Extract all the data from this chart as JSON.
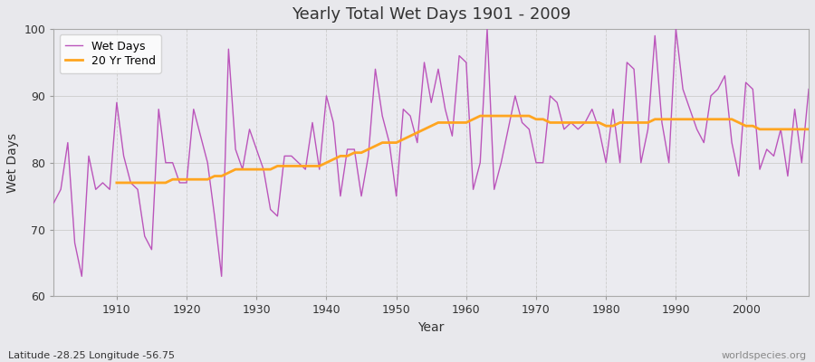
{
  "title": "Yearly Total Wet Days 1901 - 2009",
  "xlabel": "Year",
  "ylabel": "Wet Days",
  "subtitle": "Latitude -28.25 Longitude -56.75",
  "watermark": "worldspecies.org",
  "ylim": [
    60,
    100
  ],
  "xlim": [
    1901,
    2009
  ],
  "yticks": [
    60,
    70,
    80,
    90,
    100
  ],
  "xticks": [
    1910,
    1920,
    1930,
    1940,
    1950,
    1960,
    1970,
    1980,
    1990,
    2000
  ],
  "wet_days_color": "#BB55BB",
  "trend_color": "#FFA520",
  "fig_bg_color": "#E8E8EC",
  "plot_bg_color": "#EBEBF0",
  "legend_labels": [
    "Wet Days",
    "20 Yr Trend"
  ],
  "years": [
    1901,
    1902,
    1903,
    1904,
    1905,
    1906,
    1907,
    1908,
    1909,
    1910,
    1911,
    1912,
    1913,
    1914,
    1915,
    1916,
    1917,
    1918,
    1919,
    1920,
    1921,
    1922,
    1923,
    1924,
    1925,
    1926,
    1927,
    1928,
    1929,
    1930,
    1931,
    1932,
    1933,
    1934,
    1935,
    1936,
    1937,
    1938,
    1939,
    1940,
    1941,
    1942,
    1943,
    1944,
    1945,
    1946,
    1947,
    1948,
    1949,
    1950,
    1951,
    1952,
    1953,
    1954,
    1955,
    1956,
    1957,
    1958,
    1959,
    1960,
    1961,
    1962,
    1963,
    1964,
    1965,
    1966,
    1967,
    1968,
    1969,
    1970,
    1971,
    1972,
    1973,
    1974,
    1975,
    1976,
    1977,
    1978,
    1979,
    1980,
    1981,
    1982,
    1983,
    1984,
    1985,
    1986,
    1987,
    1988,
    1989,
    1990,
    1991,
    1992,
    1993,
    1994,
    1995,
    1996,
    1997,
    1998,
    1999,
    2000,
    2001,
    2002,
    2003,
    2004,
    2005,
    2006,
    2007,
    2008,
    2009
  ],
  "wet_days": [
    74,
    76,
    83,
    68,
    63,
    81,
    76,
    77,
    76,
    89,
    81,
    77,
    76,
    69,
    67,
    88,
    80,
    80,
    77,
    77,
    88,
    84,
    80,
    72,
    63,
    97,
    82,
    79,
    85,
    82,
    79,
    73,
    72,
    81,
    81,
    80,
    79,
    86,
    79,
    90,
    86,
    75,
    82,
    82,
    75,
    81,
    94,
    87,
    83,
    75,
    88,
    87,
    83,
    95,
    89,
    94,
    88,
    84,
    96,
    95,
    76,
    80,
    100,
    76,
    80,
    85,
    90,
    86,
    85,
    80,
    80,
    90,
    89,
    85,
    86,
    85,
    86,
    88,
    85,
    80,
    88,
    80,
    95,
    94,
    80,
    85,
    99,
    86,
    80,
    100,
    91,
    88,
    85,
    83,
    90,
    91,
    93,
    83,
    78,
    92,
    91,
    79,
    82,
    81,
    85,
    78,
    88,
    80,
    91
  ],
  "trend_years": [
    1910,
    1911,
    1912,
    1913,
    1914,
    1915,
    1916,
    1917,
    1918,
    1919,
    1920,
    1921,
    1922,
    1923,
    1924,
    1925,
    1926,
    1927,
    1928,
    1929,
    1930,
    1931,
    1932,
    1933,
    1934,
    1935,
    1936,
    1937,
    1938,
    1939,
    1940,
    1941,
    1942,
    1943,
    1944,
    1945,
    1946,
    1947,
    1948,
    1949,
    1950,
    1951,
    1952,
    1953,
    1954,
    1955,
    1956,
    1957,
    1958,
    1959,
    1960,
    1961,
    1962,
    1963,
    1964,
    1965,
    1966,
    1967,
    1968,
    1969,
    1970,
    1971,
    1972,
    1973,
    1974,
    1975,
    1976,
    1977,
    1978,
    1979,
    1980,
    1981,
    1982,
    1983,
    1984,
    1985,
    1986,
    1987,
    1988,
    1989,
    1990,
    1991,
    1992,
    1993,
    1994,
    1995,
    1996,
    1997,
    1998,
    1999,
    2000,
    2001,
    2002,
    2003,
    2004,
    2005,
    2006,
    2007,
    2008,
    2009
  ],
  "trend_values": [
    77,
    77,
    77,
    77,
    77,
    77,
    77,
    77,
    77.5,
    77.5,
    77.5,
    77.5,
    77.5,
    77.5,
    78,
    78,
    78.5,
    79,
    79,
    79,
    79,
    79,
    79,
    79.5,
    79.5,
    79.5,
    79.5,
    79.5,
    79.5,
    79.5,
    80,
    80.5,
    81,
    81,
    81.5,
    81.5,
    82,
    82.5,
    83,
    83,
    83,
    83.5,
    84,
    84.5,
    85,
    85.5,
    86,
    86,
    86,
    86,
    86,
    86.5,
    87,
    87,
    87,
    87,
    87,
    87,
    87,
    87,
    86.5,
    86.5,
    86,
    86,
    86,
    86,
    86,
    86,
    86,
    86,
    85.5,
    85.5,
    86,
    86,
    86,
    86,
    86,
    86.5,
    86.5,
    86.5,
    86.5,
    86.5,
    86.5,
    86.5,
    86.5,
    86.5,
    86.5,
    86.5,
    86.5,
    86,
    85.5,
    85.5,
    85,
    85,
    85,
    85,
    85,
    85,
    85,
    85
  ]
}
